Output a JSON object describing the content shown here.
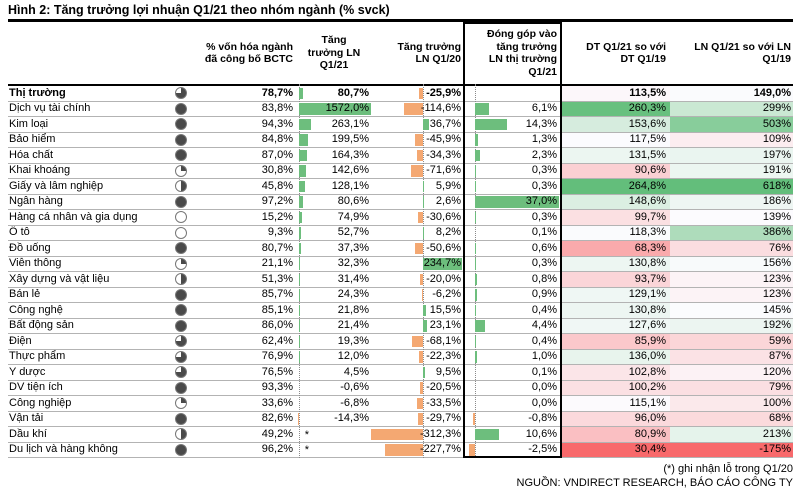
{
  "title": "Hình 2: Tăng trưởng lợi nhuận Q1/21 theo nhóm ngành (% svck)",
  "headers": {
    "cap": "% vốn hóa ngành\nđã công bố BCTC",
    "q121": "Tăng\ntrưởng LN\nQ1/21",
    "q120": "Tăng trưởng\nLN Q1/20",
    "contrib": "Đóng góp vào\ntăng trưởng\nLN thị trường\nQ1/21",
    "dt": "DT Q1/21 so với\nDT Q1/19",
    "ln": "LN Q1/21 so với LN\nQ1/19"
  },
  "footnotes": {
    "star_note": "(*) ghi nhận lỗ trong Q1/20",
    "source": "NGUỒN: VNDIRECT RESEARCH, BÁO CÁO CÔNG TY"
  },
  "colors": {
    "bar_positive_green": "#6dbe7d",
    "bar_negative_orange": "#f4a872",
    "heat_min_red": "#F8696B",
    "heat_mid_white": "#FCFCFF",
    "heat_max_green": "#63BE7B",
    "ball_fill": "#4a4a4a",
    "title_rule": "#000000"
  },
  "chart_data": {
    "type": "table",
    "title": "Hình 2: Tăng trưởng lợi nhuận Q1/21 theo nhóm ngành (% svck)",
    "columns": [
      "Ngành",
      "% vốn hóa ngành đã công bố BCTC",
      "Tăng trưởng LN Q1/21",
      "Tăng trưởng LN Q1/20",
      "Đóng góp vào tăng trưởng LN thị trường Q1/21",
      "DT Q1/21 so với DT Q1/19",
      "LN Q1/21 so với LN Q1/19"
    ],
    "rows": [
      {
        "label": "Thị trường",
        "bold": true,
        "cap": "78,7%",
        "star": false,
        "q121": "80,7%",
        "q120": "-25,9%",
        "contrib": "",
        "dt": "113,5%",
        "ln": "149,0%"
      },
      {
        "label": "Dịch vụ tài chính",
        "bold": false,
        "cap": "83,8%",
        "star": false,
        "q121": "1572,0%",
        "q120": "-114,6%",
        "contrib": "6,1%",
        "dt": "260,3%",
        "ln": "299%"
      },
      {
        "label": "Kim loại",
        "bold": false,
        "cap": "94,3%",
        "star": false,
        "q121": "263,1%",
        "q120": "36,7%",
        "contrib": "14,3%",
        "dt": "153,6%",
        "ln": "503%"
      },
      {
        "label": "Bảo hiểm",
        "bold": false,
        "cap": "84,8%",
        "star": false,
        "q121": "199,5%",
        "q120": "-45,9%",
        "contrib": "1,3%",
        "dt": "117,5%",
        "ln": "109%"
      },
      {
        "label": "Hóa chất",
        "bold": false,
        "cap": "87,0%",
        "star": false,
        "q121": "164,3%",
        "q120": "-34,3%",
        "contrib": "2,3%",
        "dt": "131,5%",
        "ln": "197%"
      },
      {
        "label": "Khai khoáng",
        "bold": false,
        "cap": "30,8%",
        "star": false,
        "q121": "142,6%",
        "q120": "-71,6%",
        "contrib": "0,3%",
        "dt": "90,6%",
        "ln": "191%"
      },
      {
        "label": "Giấy và lâm nghiệp",
        "bold": false,
        "cap": "45,8%",
        "star": false,
        "q121": "128,1%",
        "q120": "5,9%",
        "contrib": "0,3%",
        "dt": "264,8%",
        "ln": "618%"
      },
      {
        "label": "Ngân hàng",
        "bold": false,
        "cap": "97,2%",
        "star": false,
        "q121": "80,6%",
        "q120": "2,6%",
        "contrib": "37,0%",
        "dt": "148,6%",
        "ln": "186%"
      },
      {
        "label": "Hàng cá nhân và gia dụng",
        "bold": false,
        "cap": "15,2%",
        "star": false,
        "q121": "74,9%",
        "q120": "-30,6%",
        "contrib": "0,3%",
        "dt": "99,7%",
        "ln": "139%"
      },
      {
        "label": "Ô tô",
        "bold": false,
        "cap": "9,3%",
        "star": false,
        "q121": "52,7%",
        "q120": "8,2%",
        "contrib": "0,1%",
        "dt": "118,3%",
        "ln": "386%"
      },
      {
        "label": "Đồ uống",
        "bold": false,
        "cap": "80,7%",
        "star": false,
        "q121": "37,3%",
        "q120": "-50,6%",
        "contrib": "0,6%",
        "dt": "68,3%",
        "ln": "76%"
      },
      {
        "label": "Viễn thông",
        "bold": false,
        "cap": "21,1%",
        "star": false,
        "q121": "32,3%",
        "q120": "234,7%",
        "contrib": "0,3%",
        "dt": "130,8%",
        "ln": "156%"
      },
      {
        "label": "Xây dựng và vật liệu",
        "bold": false,
        "cap": "51,3%",
        "star": false,
        "q121": "31,4%",
        "q120": "-20,0%",
        "contrib": "0,8%",
        "dt": "93,7%",
        "ln": "123%"
      },
      {
        "label": "Bán lẻ",
        "bold": false,
        "cap": "85,7%",
        "star": false,
        "q121": "24,3%",
        "q120": "-6,2%",
        "contrib": "0,9%",
        "dt": "129,1%",
        "ln": "123%"
      },
      {
        "label": "Công nghệ",
        "bold": false,
        "cap": "85,1%",
        "star": false,
        "q121": "21,8%",
        "q120": "15,5%",
        "contrib": "0,4%",
        "dt": "130,8%",
        "ln": "145%"
      },
      {
        "label": "Bất động sản",
        "bold": false,
        "cap": "86,0%",
        "star": false,
        "q121": "21,4%",
        "q120": "23,1%",
        "contrib": "4,4%",
        "dt": "127,6%",
        "ln": "192%"
      },
      {
        "label": "Điện",
        "bold": false,
        "cap": "62,4%",
        "star": false,
        "q121": "19,3%",
        "q120": "-68,1%",
        "contrib": "0,4%",
        "dt": "85,9%",
        "ln": "59%"
      },
      {
        "label": "Thực phẩm",
        "bold": false,
        "cap": "76,9%",
        "star": false,
        "q121": "12,0%",
        "q120": "-22,3%",
        "contrib": "1,0%",
        "dt": "136,0%",
        "ln": "87%"
      },
      {
        "label": "Y dược",
        "bold": false,
        "cap": "76,5%",
        "star": false,
        "q121": "4,5%",
        "q120": "9,5%",
        "contrib": "0,1%",
        "dt": "102,8%",
        "ln": "120%"
      },
      {
        "label": "DV tiện ích",
        "bold": false,
        "cap": "93,3%",
        "star": false,
        "q121": "-0,6%",
        "q120": "-20,5%",
        "contrib": "0,0%",
        "dt": "100,2%",
        "ln": "79%"
      },
      {
        "label": "Công nghiệp",
        "bold": false,
        "cap": "33,6%",
        "star": false,
        "q121": "-6,8%",
        "q120": "-33,5%",
        "contrib": "0,0%",
        "dt": "115,1%",
        "ln": "100%"
      },
      {
        "label": "Vận tải",
        "bold": false,
        "cap": "82,6%",
        "star": false,
        "q121": "-14,3%",
        "q120": "-29,7%",
        "contrib": "-0,8%",
        "dt": "96,0%",
        "ln": "68%"
      },
      {
        "label": "Dầu khí",
        "bold": false,
        "cap": "49,2%",
        "star": true,
        "q121": "",
        "q120": "-312,3%",
        "contrib": "10,6%",
        "dt": "80,9%",
        "ln": "213%"
      },
      {
        "label": "Du lịch và hàng không",
        "bold": false,
        "cap": "96,2%",
        "star": true,
        "q121": "",
        "q120": "-227,7%",
        "contrib": "-2,5%",
        "dt": "30,4%",
        "ln": "-175%"
      }
    ]
  }
}
